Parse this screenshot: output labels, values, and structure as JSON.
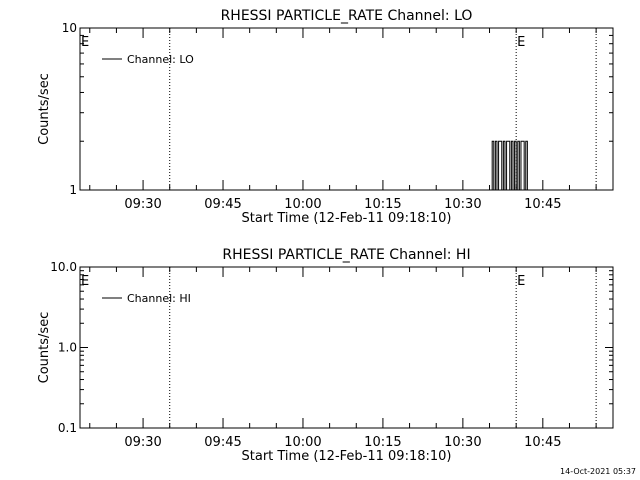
{
  "footer_timestamp": "14-Oct-2021 05:37",
  "chart_data": [
    {
      "type": "line",
      "title": "RHESSI PARTICLE_RATE Channel: LO",
      "xlabel": "Start Time (12-Feb-11 09:18:10)",
      "ylabel": "Counts/sec",
      "yscale": "log",
      "ylim": [
        1,
        10
      ],
      "ytick_labels": [
        "1",
        "10"
      ],
      "x_ticks": [
        "09:30",
        "09:45",
        "10:00",
        "10:15",
        "10:30",
        "10:45"
      ],
      "xlim": [
        "09:18:10",
        "10:58:10"
      ],
      "legend": "top-left",
      "series": [
        {
          "name": "Channel: LO",
          "x": [
            "10:35:30",
            "10:35:48",
            "10:36:06",
            "10:36:24",
            "10:36:42",
            "10:37:00",
            "10:37:18",
            "10:37:36",
            "10:37:54",
            "10:38:12",
            "10:38:30",
            "10:38:48",
            "10:39:06",
            "10:39:24",
            "10:39:42",
            "10:40:00",
            "10:40:18",
            "10:40:36",
            "10:40:54",
            "10:41:12",
            "10:41:30",
            "10:41:48",
            "10:42:06"
          ],
          "y": [
            2,
            1,
            2,
            1,
            2,
            2,
            1,
            2,
            1,
            2,
            2,
            1,
            2,
            1,
            2,
            1,
            2,
            1,
            2,
            2,
            1,
            2,
            1
          ]
        }
      ],
      "vlines": [
        {
          "time": "09:35:00",
          "label": ""
        },
        {
          "time": "10:40:00",
          "label": "E"
        },
        {
          "time": "10:55:00",
          "label": ""
        }
      ],
      "markers": [
        {
          "time": "09:18:10",
          "label": "E"
        }
      ]
    },
    {
      "type": "line",
      "title": "RHESSI PARTICLE_RATE Channel: HI",
      "xlabel": "Start Time (12-Feb-11 09:18:10)",
      "ylabel": "Counts/sec",
      "yscale": "log",
      "ylim": [
        0.1,
        10
      ],
      "ytick_labels": [
        "0.1",
        "1.0",
        "10.0"
      ],
      "x_ticks": [
        "09:30",
        "09:45",
        "10:00",
        "10:15",
        "10:30",
        "10:45"
      ],
      "xlim": [
        "09:18:10",
        "10:58:10"
      ],
      "legend": "top-left",
      "series": [
        {
          "name": "Channel: HI",
          "x": [],
          "y": []
        }
      ],
      "vlines": [
        {
          "time": "09:35:00",
          "label": ""
        },
        {
          "time": "10:40:00",
          "label": "E"
        },
        {
          "time": "10:55:00",
          "label": ""
        }
      ],
      "markers": [
        {
          "time": "09:18:10",
          "label": "E"
        }
      ]
    }
  ]
}
